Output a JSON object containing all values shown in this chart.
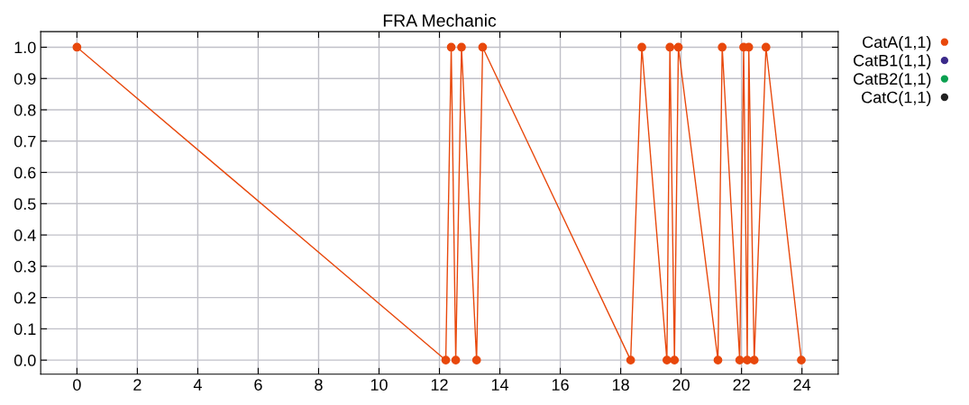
{
  "chart_data": {
    "type": "line",
    "title": "FRA Mechanic",
    "series": [
      {
        "name": "CatA(1,1)",
        "color": "#e8480c",
        "x": [
          0,
          12.21,
          12.39,
          12.54,
          12.73,
          13.23,
          13.43,
          18.33,
          18.7,
          19.53,
          19.63,
          19.78,
          19.91,
          21.22,
          21.36,
          21.94,
          22.07,
          22.19,
          22.24,
          22.42,
          22.81,
          23.98
        ],
        "values": [
          1,
          0,
          1,
          0,
          1,
          0,
          1,
          0,
          1,
          0,
          1,
          0,
          1,
          0,
          1,
          0,
          1,
          0,
          1,
          0,
          1,
          0
        ]
      },
      {
        "name": "CatB1(1,1)",
        "color": "#3b2a8a"
      },
      {
        "name": "CatB2(1,1)",
        "color": "#0aa050"
      },
      {
        "name": "CatC(1,1)",
        "color": "#222222"
      }
    ],
    "xlim": [
      -1.2,
      25.2
    ],
    "xticks": [
      0,
      2,
      4,
      6,
      8,
      10,
      12,
      14,
      16,
      18,
      20,
      22,
      24
    ],
    "ylim": [
      -0.045,
      1.05
    ],
    "yticks": [
      {
        "value": 0,
        "label": "0.0"
      },
      0.1,
      0.2,
      0.3,
      0.4,
      0.5,
      0.6,
      0.7,
      0.8,
      0.9,
      {
        "value": 1,
        "label": "1.0"
      }
    ],
    "grid": true,
    "legend": "right",
    "marker": "circle",
    "line_style": "solid"
  }
}
